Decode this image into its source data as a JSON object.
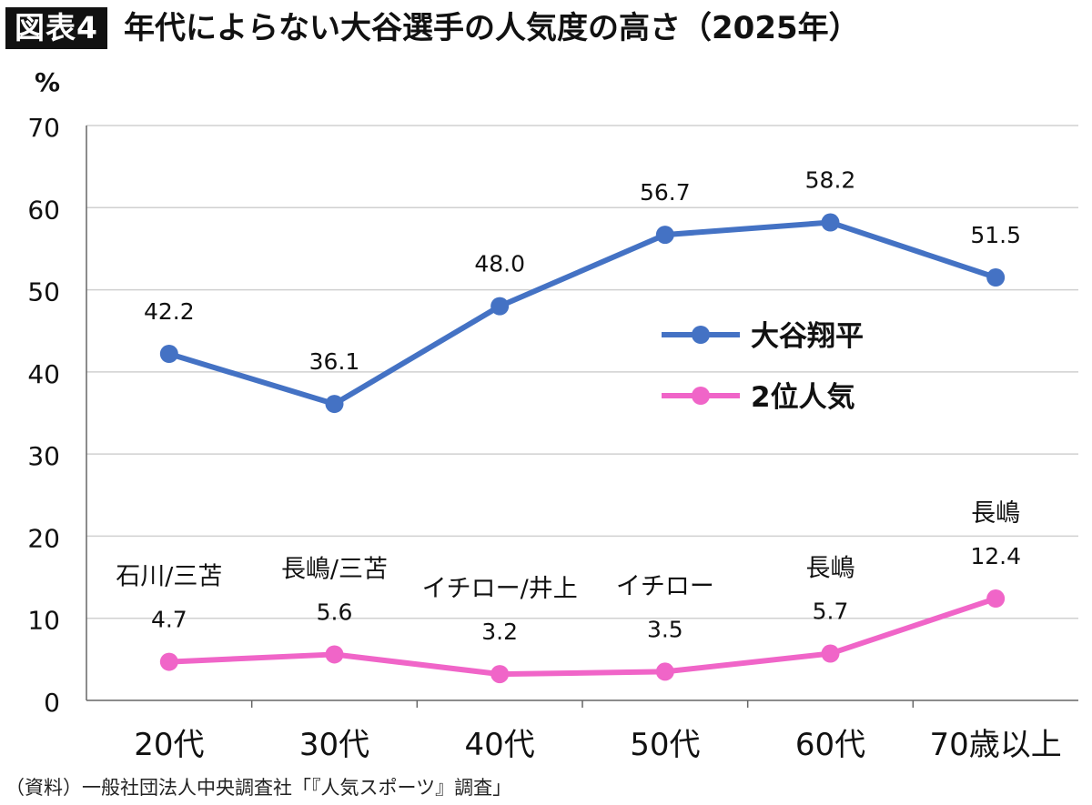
{
  "header": {
    "tag": "図表4",
    "title": "年代によらない大谷選手の人気度の高さ（2025年）"
  },
  "source": "（資料）一般社団法人中央調査社「『人気スポーツ』調査」",
  "colors": {
    "series1": "#4472C4",
    "series2": "#F065C8",
    "grid": "#d0d0d0",
    "axis": "#666666",
    "text": "#111111"
  },
  "chart_data": {
    "type": "line",
    "title": "年代によらない大谷選手の人気度の高さ（2025年）",
    "ylabel": "%",
    "xlabel": "",
    "ylim": [
      0,
      70
    ],
    "yticks": [
      0,
      10,
      20,
      30,
      40,
      50,
      60,
      70
    ],
    "grid": true,
    "legend_position": "center-right",
    "categories": [
      "20代",
      "30代",
      "40代",
      "50代",
      "60代",
      "70歳以上"
    ],
    "series": [
      {
        "name": "大谷翔平",
        "color": "#4472C4",
        "values": [
          42.2,
          36.1,
          48.0,
          56.7,
          58.2,
          51.5
        ],
        "labels": [
          "42.2",
          "36.1",
          "48.0",
          "56.7",
          "58.2",
          "51.5"
        ]
      },
      {
        "name": "2位人気",
        "color": "#F065C8",
        "values": [
          4.7,
          5.6,
          3.2,
          3.5,
          5.7,
          12.4
        ],
        "labels": [
          "4.7",
          "5.6",
          "3.2",
          "3.5",
          "5.7",
          "12.4"
        ],
        "annotations": [
          "石川/三苫",
          "長嶋/三苫",
          "イチロー/井上",
          "イチロー",
          "長嶋",
          "長嶋"
        ]
      }
    ]
  }
}
